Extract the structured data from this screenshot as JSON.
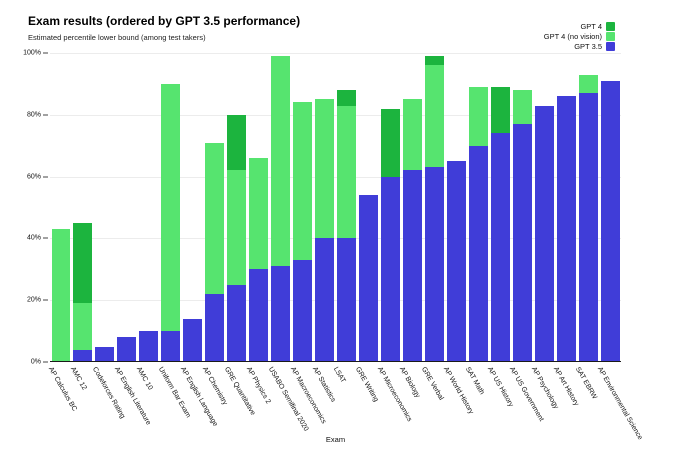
{
  "header": {
    "title": "Exam results (ordered by GPT 3.5 performance)",
    "subtitle": "Estimated percentile lower bound (among test takers)"
  },
  "legend": [
    {
      "label": "GPT 4",
      "color": "#1cb43e",
      "icon": "swatch-dark-green"
    },
    {
      "label": "GPT 4 (no vision)",
      "color": "#56e46f",
      "icon": "swatch-light-green"
    },
    {
      "label": "GPT 3.5",
      "color": "#403dd8",
      "icon": "swatch-blue"
    }
  ],
  "chart_data": {
    "type": "bar",
    "overlay": true,
    "title": "Exam results (ordered by GPT 3.5 performance)",
    "subtitle": "Estimated percentile lower bound (among test takers)",
    "xlabel": "Exam",
    "ylabel": "Estimated percentile lower bound (among test takers)",
    "ylim": [
      0,
      100
    ],
    "grid": true,
    "legend_position": "top-right",
    "y_ticks": [
      {
        "v": 0,
        "label": "0%"
      },
      {
        "v": 20,
        "label": "20%"
      },
      {
        "v": 40,
        "label": "40%"
      },
      {
        "v": 60,
        "label": "60%"
      },
      {
        "v": 80,
        "label": "80%"
      },
      {
        "v": 100,
        "label": "100%"
      }
    ],
    "categories": [
      "AP Calculus BC",
      "AMC 12",
      "Codeforces Rating",
      "AP English Literature",
      "AMC 10",
      "Uniform Bar Exam",
      "AP English Language",
      "AP Chemistry",
      "GRE Quantitative",
      "AP Physics 2",
      "USABO Semifinal 2020",
      "AP Macroeconomics",
      "AP Statistics",
      "LSAT",
      "GRE Writing",
      "AP Microeconomics",
      "AP Biology",
      "GRE Verbal",
      "AP World History",
      "SAT Math",
      "AP US History",
      "AP US Government",
      "AP Psychology",
      "AP Art History",
      "SAT EBRW",
      "AP Environmental Science"
    ],
    "series": [
      {
        "name": "GPT 4",
        "color": "#1cb43e",
        "values": [
          43,
          45,
          5,
          8,
          6,
          90,
          14,
          71,
          80,
          66,
          99,
          84,
          85,
          88,
          54,
          82,
          85,
          99,
          65,
          89,
          89,
          88,
          83,
          86,
          93,
          91
        ]
      },
      {
        "name": "GPT 4 (no vision)",
        "color": "#56e46f",
        "values": [
          43,
          19,
          5,
          8,
          10,
          90,
          14,
          71,
          62,
          66,
          99,
          84,
          85,
          83,
          54,
          60,
          85,
          96,
          65,
          89,
          74,
          88,
          83,
          86,
          93,
          91
        ]
      },
      {
        "name": "GPT 3.5",
        "color": "#403dd8",
        "values": [
          0,
          4,
          5,
          8,
          10,
          10,
          14,
          22,
          25,
          30,
          31,
          33,
          40,
          40,
          54,
          60,
          62,
          63,
          65,
          70,
          74,
          77,
          83,
          86,
          87,
          91
        ]
      }
    ]
  }
}
